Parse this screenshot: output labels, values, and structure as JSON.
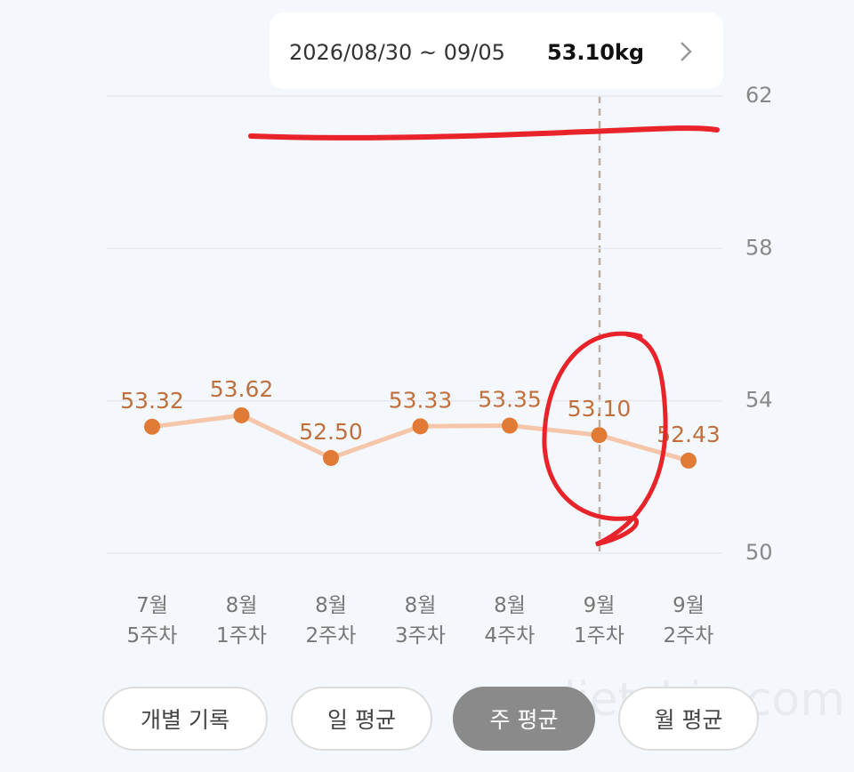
{
  "chart_data": {
    "type": "line",
    "categories": [
      "7월\n5주차",
      "8월\n1주차",
      "8월\n2주차",
      "8월\n3주차",
      "8월\n4주차",
      "9월\n1주차",
      "9월\n2주차"
    ],
    "values": [
      53.32,
      53.62,
      52.5,
      53.33,
      53.35,
      53.1,
      52.43
    ],
    "value_labels": [
      "53.32",
      "53.62",
      "52.50",
      "53.33",
      "53.35",
      "53.10",
      "52.43"
    ],
    "line_color": "#f6c6aa",
    "point_color": "#e07a35",
    "ylim": [
      50,
      62
    ],
    "yticks": [
      50,
      54,
      58,
      62
    ],
    "grid": true
  },
  "tooltip": {
    "range": "2026/08/30 ~ 09/05",
    "value": "53.10kg"
  },
  "buttons": [
    "개별 기록",
    "일 평균",
    "주 평균",
    "월 평균"
  ],
  "watermark": "dietshin.com"
}
